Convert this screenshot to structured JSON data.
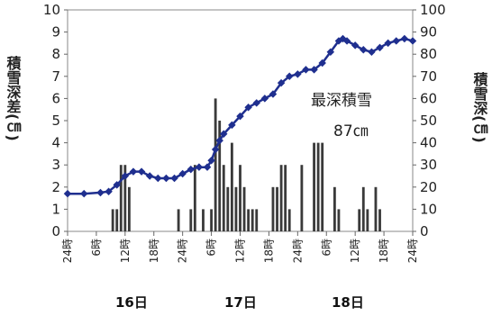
{
  "chart_data": {
    "type": "bar+line",
    "title": "",
    "left_axis": {
      "label": "積雪深差(㎝)",
      "ylim": [
        0,
        10
      ],
      "ticks": [
        "0",
        "1",
        "2",
        "3",
        "4",
        "5",
        "6",
        "7",
        "8",
        "9",
        "10"
      ]
    },
    "right_axis": {
      "label": "積雪深(㎝)",
      "ylim": [
        0,
        100
      ],
      "ticks": [
        "0",
        "10",
        "20",
        "30",
        "40",
        "50",
        "60",
        "70",
        "80",
        "90",
        "100"
      ]
    },
    "x_tick_labels": [
      "24時",
      "6時",
      "12時",
      "18時",
      "24時",
      "6時",
      "12時",
      "18時",
      "24時",
      "6時",
      "12時",
      "18時",
      "24時"
    ],
    "day_labels": [
      "16日",
      "17日",
      "18日"
    ],
    "annotation": {
      "line1": "最深積雪",
      "line2": "87㎝"
    },
    "bar_color": "#3a3a3a",
    "line_color": "#1f2f8f",
    "bars": [
      {
        "x": 11,
        "y": 1
      },
      {
        "x": 12,
        "y": 1
      },
      {
        "x": 13,
        "y": 3
      },
      {
        "x": 14,
        "y": 3
      },
      {
        "x": 15,
        "y": 2
      },
      {
        "x": 27,
        "y": 1
      },
      {
        "x": 30,
        "y": 1
      },
      {
        "x": 31,
        "y": 3
      },
      {
        "x": 33,
        "y": 1
      },
      {
        "x": 35,
        "y": 1
      },
      {
        "x": 36,
        "y": 6
      },
      {
        "x": 37,
        "y": 5
      },
      {
        "x": 38,
        "y": 3
      },
      {
        "x": 39,
        "y": 2
      },
      {
        "x": 40,
        "y": 4
      },
      {
        "x": 41,
        "y": 2
      },
      {
        "x": 42,
        "y": 3
      },
      {
        "x": 43,
        "y": 2
      },
      {
        "x": 44,
        "y": 1
      },
      {
        "x": 45,
        "y": 1
      },
      {
        "x": 46,
        "y": 1
      },
      {
        "x": 50,
        "y": 2
      },
      {
        "x": 51,
        "y": 2
      },
      {
        "x": 52,
        "y": 3
      },
      {
        "x": 53,
        "y": 3
      },
      {
        "x": 54,
        "y": 1
      },
      {
        "x": 57,
        "y": 3
      },
      {
        "x": 60,
        "y": 4
      },
      {
        "x": 61,
        "y": 4
      },
      {
        "x": 62,
        "y": 4
      },
      {
        "x": 65,
        "y": 2
      },
      {
        "x": 66,
        "y": 1
      },
      {
        "x": 71,
        "y": 1
      },
      {
        "x": 72,
        "y": 2
      },
      {
        "x": 73,
        "y": 1
      },
      {
        "x": 75,
        "y": 2
      },
      {
        "x": 76,
        "y": 1
      }
    ],
    "line": [
      {
        "x": 0,
        "y": 17
      },
      {
        "x": 4,
        "y": 17
      },
      {
        "x": 8,
        "y": 17.5
      },
      {
        "x": 10,
        "y": 18
      },
      {
        "x": 12,
        "y": 21
      },
      {
        "x": 14,
        "y": 25
      },
      {
        "x": 16,
        "y": 27
      },
      {
        "x": 18,
        "y": 27
      },
      {
        "x": 20,
        "y": 25
      },
      {
        "x": 22,
        "y": 24
      },
      {
        "x": 24,
        "y": 24
      },
      {
        "x": 26,
        "y": 24
      },
      {
        "x": 28,
        "y": 26
      },
      {
        "x": 30,
        "y": 28
      },
      {
        "x": 32,
        "y": 29
      },
      {
        "x": 34,
        "y": 29
      },
      {
        "x": 35,
        "y": 32
      },
      {
        "x": 36,
        "y": 37
      },
      {
        "x": 37,
        "y": 41
      },
      {
        "x": 38,
        "y": 44
      },
      {
        "x": 40,
        "y": 48
      },
      {
        "x": 42,
        "y": 52
      },
      {
        "x": 44,
        "y": 56
      },
      {
        "x": 46,
        "y": 58
      },
      {
        "x": 48,
        "y": 60
      },
      {
        "x": 50,
        "y": 62
      },
      {
        "x": 52,
        "y": 67
      },
      {
        "x": 54,
        "y": 70
      },
      {
        "x": 56,
        "y": 71
      },
      {
        "x": 58,
        "y": 73
      },
      {
        "x": 60,
        "y": 73
      },
      {
        "x": 62,
        "y": 76
      },
      {
        "x": 64,
        "y": 81
      },
      {
        "x": 66,
        "y": 86
      },
      {
        "x": 67,
        "y": 87
      },
      {
        "x": 68,
        "y": 86
      },
      {
        "x": 70,
        "y": 84
      },
      {
        "x": 72,
        "y": 82
      },
      {
        "x": 74,
        "y": 81
      },
      {
        "x": 76,
        "y": 83
      },
      {
        "x": 78,
        "y": 85
      },
      {
        "x": 80,
        "y": 86
      },
      {
        "x": 82,
        "y": 87
      },
      {
        "x": 84,
        "y": 86
      }
    ],
    "x_range": [
      0,
      84
    ]
  }
}
